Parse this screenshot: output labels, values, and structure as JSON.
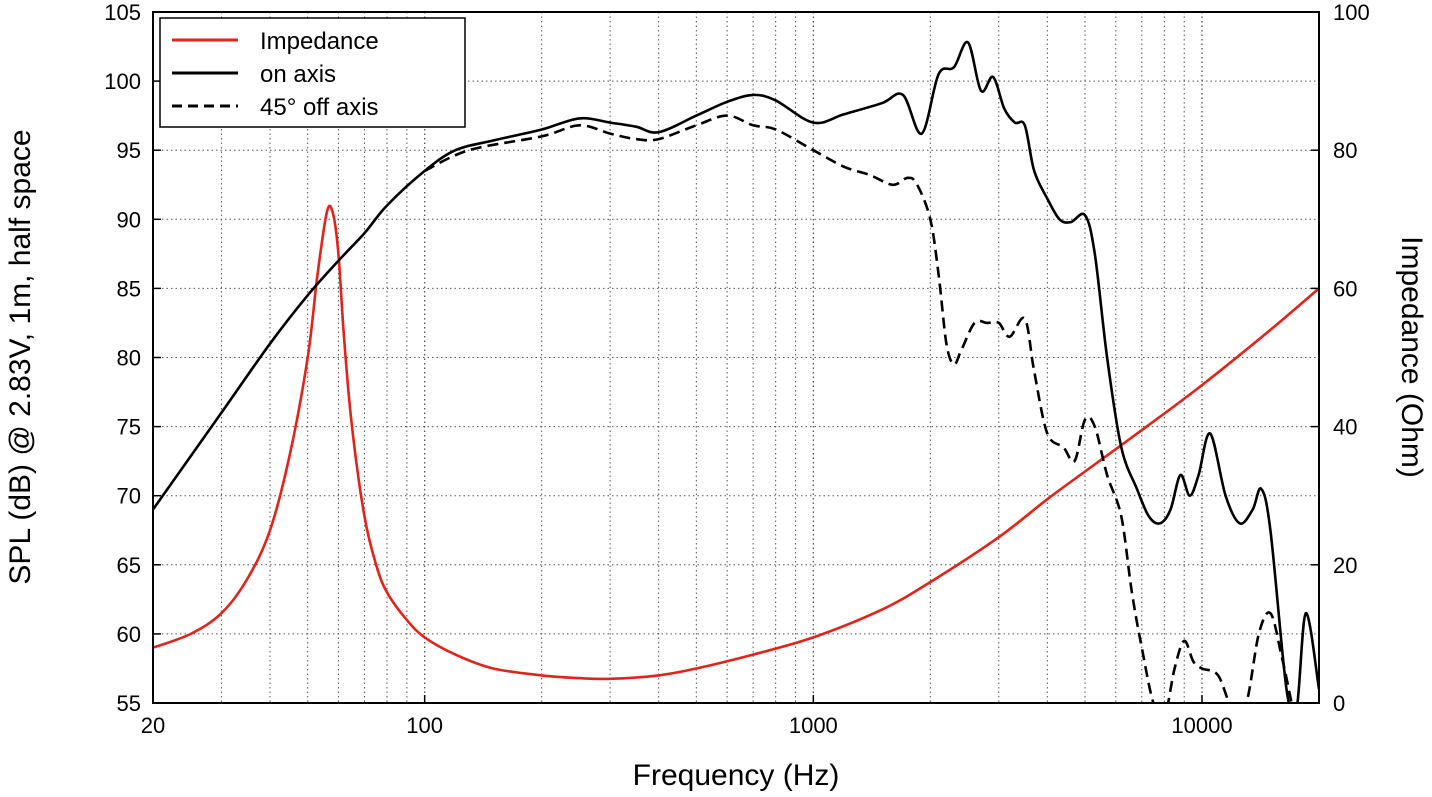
{
  "chart_data": {
    "type": "line",
    "xlabel": "Frequency (Hz)",
    "ylabel_left": "SPL (dB) @ 2.83V, 1m, half space",
    "ylabel_right": "Impedance (Ohm)",
    "x_scale": "log",
    "xlim": [
      20,
      20000
    ],
    "ylim_left": [
      55,
      105
    ],
    "ylim_right": [
      0,
      100
    ],
    "x_ticks": [
      20,
      100,
      1000,
      10000
    ],
    "x_tick_labels": [
      "20",
      "100",
      "1000",
      "10000"
    ],
    "y_ticks_left": [
      55,
      60,
      65,
      70,
      75,
      80,
      85,
      90,
      95,
      100,
      105
    ],
    "y_tick_labels_left": [
      "55",
      "60",
      "65",
      "70",
      "75",
      "80",
      "85",
      "90",
      "95",
      "100",
      "105"
    ],
    "y_ticks_right": [
      0,
      20,
      40,
      60,
      80,
      100
    ],
    "y_tick_labels_right": [
      "0",
      "20",
      "40",
      "60",
      "80",
      "100"
    ],
    "grid": true,
    "legend_placement": "top-left",
    "colors": {
      "impedance": "#e2231a",
      "on_axis": "#000000",
      "off_axis": "#000000"
    },
    "series": [
      {
        "name": "Impedance",
        "axis": "right",
        "style": "solid",
        "x": [
          20,
          25,
          30,
          35,
          40,
          45,
          50,
          53,
          56,
          58,
          60,
          62,
          65,
          70,
          75,
          80,
          90,
          100,
          120,
          150,
          200,
          250,
          300,
          400,
          500,
          700,
          1000,
          1500,
          2000,
          3000,
          4000,
          5000,
          7000,
          10000,
          15000,
          20000
        ],
        "y": [
          8,
          10,
          13,
          18,
          25,
          36,
          50,
          62,
          71,
          71,
          65,
          53,
          40,
          27,
          20,
          16,
          12,
          9.5,
          7,
          5,
          4,
          3.6,
          3.5,
          4,
          5,
          7,
          9.5,
          13.5,
          17.5,
          24,
          29.5,
          33.5,
          39.5,
          46,
          54,
          60
        ]
      },
      {
        "name": "on axis",
        "axis": "left",
        "style": "solid",
        "x": [
          20,
          30,
          40,
          50,
          60,
          70,
          80,
          100,
          120,
          150,
          200,
          250,
          300,
          350,
          400,
          500,
          600,
          700,
          800,
          1000,
          1200,
          1500,
          1700,
          1900,
          2100,
          2300,
          2500,
          2700,
          2900,
          3100,
          3300,
          3500,
          3700,
          4000,
          4300,
          4600,
          5000,
          5300,
          5700,
          6200,
          6800,
          7300,
          7800,
          8300,
          8800,
          9300,
          9800,
          10500,
          11500,
          12500,
          13500,
          14200,
          15000,
          16500,
          17500,
          18500,
          20000
        ],
        "y": [
          69,
          76,
          81,
          84.5,
          87,
          89,
          91,
          93.5,
          95,
          95.7,
          96.5,
          97.3,
          97,
          96.7,
          96.3,
          97.5,
          98.5,
          99,
          98.6,
          97,
          97.6,
          98.4,
          99,
          96.2,
          100.5,
          101,
          102.8,
          99.3,
          100.3,
          98,
          97,
          96.8,
          93.5,
          91.5,
          90,
          89.8,
          90.3,
          87.5,
          80,
          73.5,
          70.5,
          68.5,
          68,
          69,
          71.5,
          70,
          71.5,
          74.5,
          70,
          68,
          69,
          70.5,
          67.5,
          56,
          54.5,
          61.5,
          56
        ]
      },
      {
        "name": "45° off axis",
        "axis": "left",
        "style": "dashed",
        "x": [
          100,
          130,
          200,
          250,
          300,
          350,
          400,
          500,
          600,
          700,
          800,
          1000,
          1200,
          1400,
          1600,
          1750,
          1850,
          2000,
          2100,
          2200,
          2300,
          2400,
          2600,
          2800,
          3000,
          3200,
          3500,
          3700,
          4000,
          4400,
          4700,
          5000,
          5300,
          5700,
          6200,
          6600,
          7000,
          7500,
          8000,
          8500,
          9000,
          9500,
          10000,
          11000,
          12000,
          13000,
          14000,
          15000,
          16000,
          17000
        ],
        "y": [
          93.5,
          95,
          96,
          96.8,
          96.2,
          95.8,
          95.8,
          96.8,
          97.5,
          96.8,
          96.5,
          95,
          93.8,
          93.2,
          92.5,
          93,
          92.5,
          90,
          86,
          81,
          79.5,
          80.5,
          82.5,
          82.5,
          82.5,
          81.5,
          82.8,
          79,
          74.5,
          73.5,
          72.5,
          75.5,
          75,
          71.5,
          68.5,
          63,
          59,
          55,
          54,
          57.5,
          59.5,
          58,
          57.5,
          57,
          54.5,
          55,
          60,
          61.5,
          58.5,
          55
        ]
      }
    ]
  }
}
